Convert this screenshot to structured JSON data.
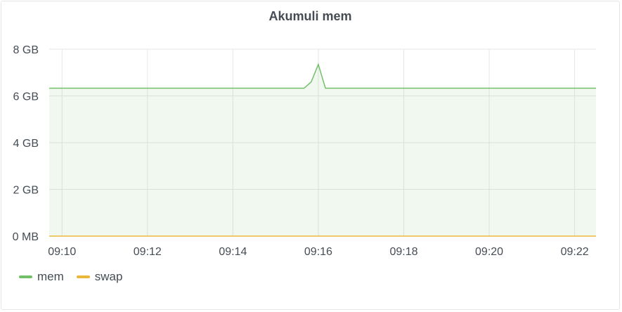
{
  "panel": {
    "title": "Akumuli mem"
  },
  "colors": {
    "mem": "#73bf69",
    "swap": "#eab839",
    "grid": "#e6e6e6",
    "text": "#464c54"
  },
  "chart_data": {
    "type": "area",
    "title": "Akumuli mem",
    "xlabel": "",
    "ylabel": "",
    "xlim": [
      "09:09:42",
      "09:22:30"
    ],
    "ylim": [
      0,
      8
    ],
    "y_unit": "GB",
    "y_ticks": [
      {
        "value": 0,
        "label": "0 MB"
      },
      {
        "value": 2,
        "label": "2 GB"
      },
      {
        "value": 4,
        "label": "4 GB"
      },
      {
        "value": 6,
        "label": "6 GB"
      },
      {
        "value": 8,
        "label": "8 GB"
      }
    ],
    "x_ticks": [
      "09:10",
      "09:12",
      "09:14",
      "09:16",
      "09:18",
      "09:20",
      "09:22"
    ],
    "grid": true,
    "legend_position": "bottom-left",
    "series": [
      {
        "name": "mem",
        "color": "#73bf69",
        "fill": true,
        "points": [
          [
            "09:09:42",
            6.33
          ],
          [
            "09:15:40",
            6.33
          ],
          [
            "09:15:50",
            6.6
          ],
          [
            "09:16:00",
            7.35
          ],
          [
            "09:16:10",
            6.33
          ],
          [
            "09:22:30",
            6.33
          ]
        ]
      },
      {
        "name": "swap",
        "color": "#eab839",
        "fill": false,
        "points": [
          [
            "09:09:42",
            0
          ],
          [
            "09:22:30",
            0
          ]
        ]
      }
    ]
  }
}
